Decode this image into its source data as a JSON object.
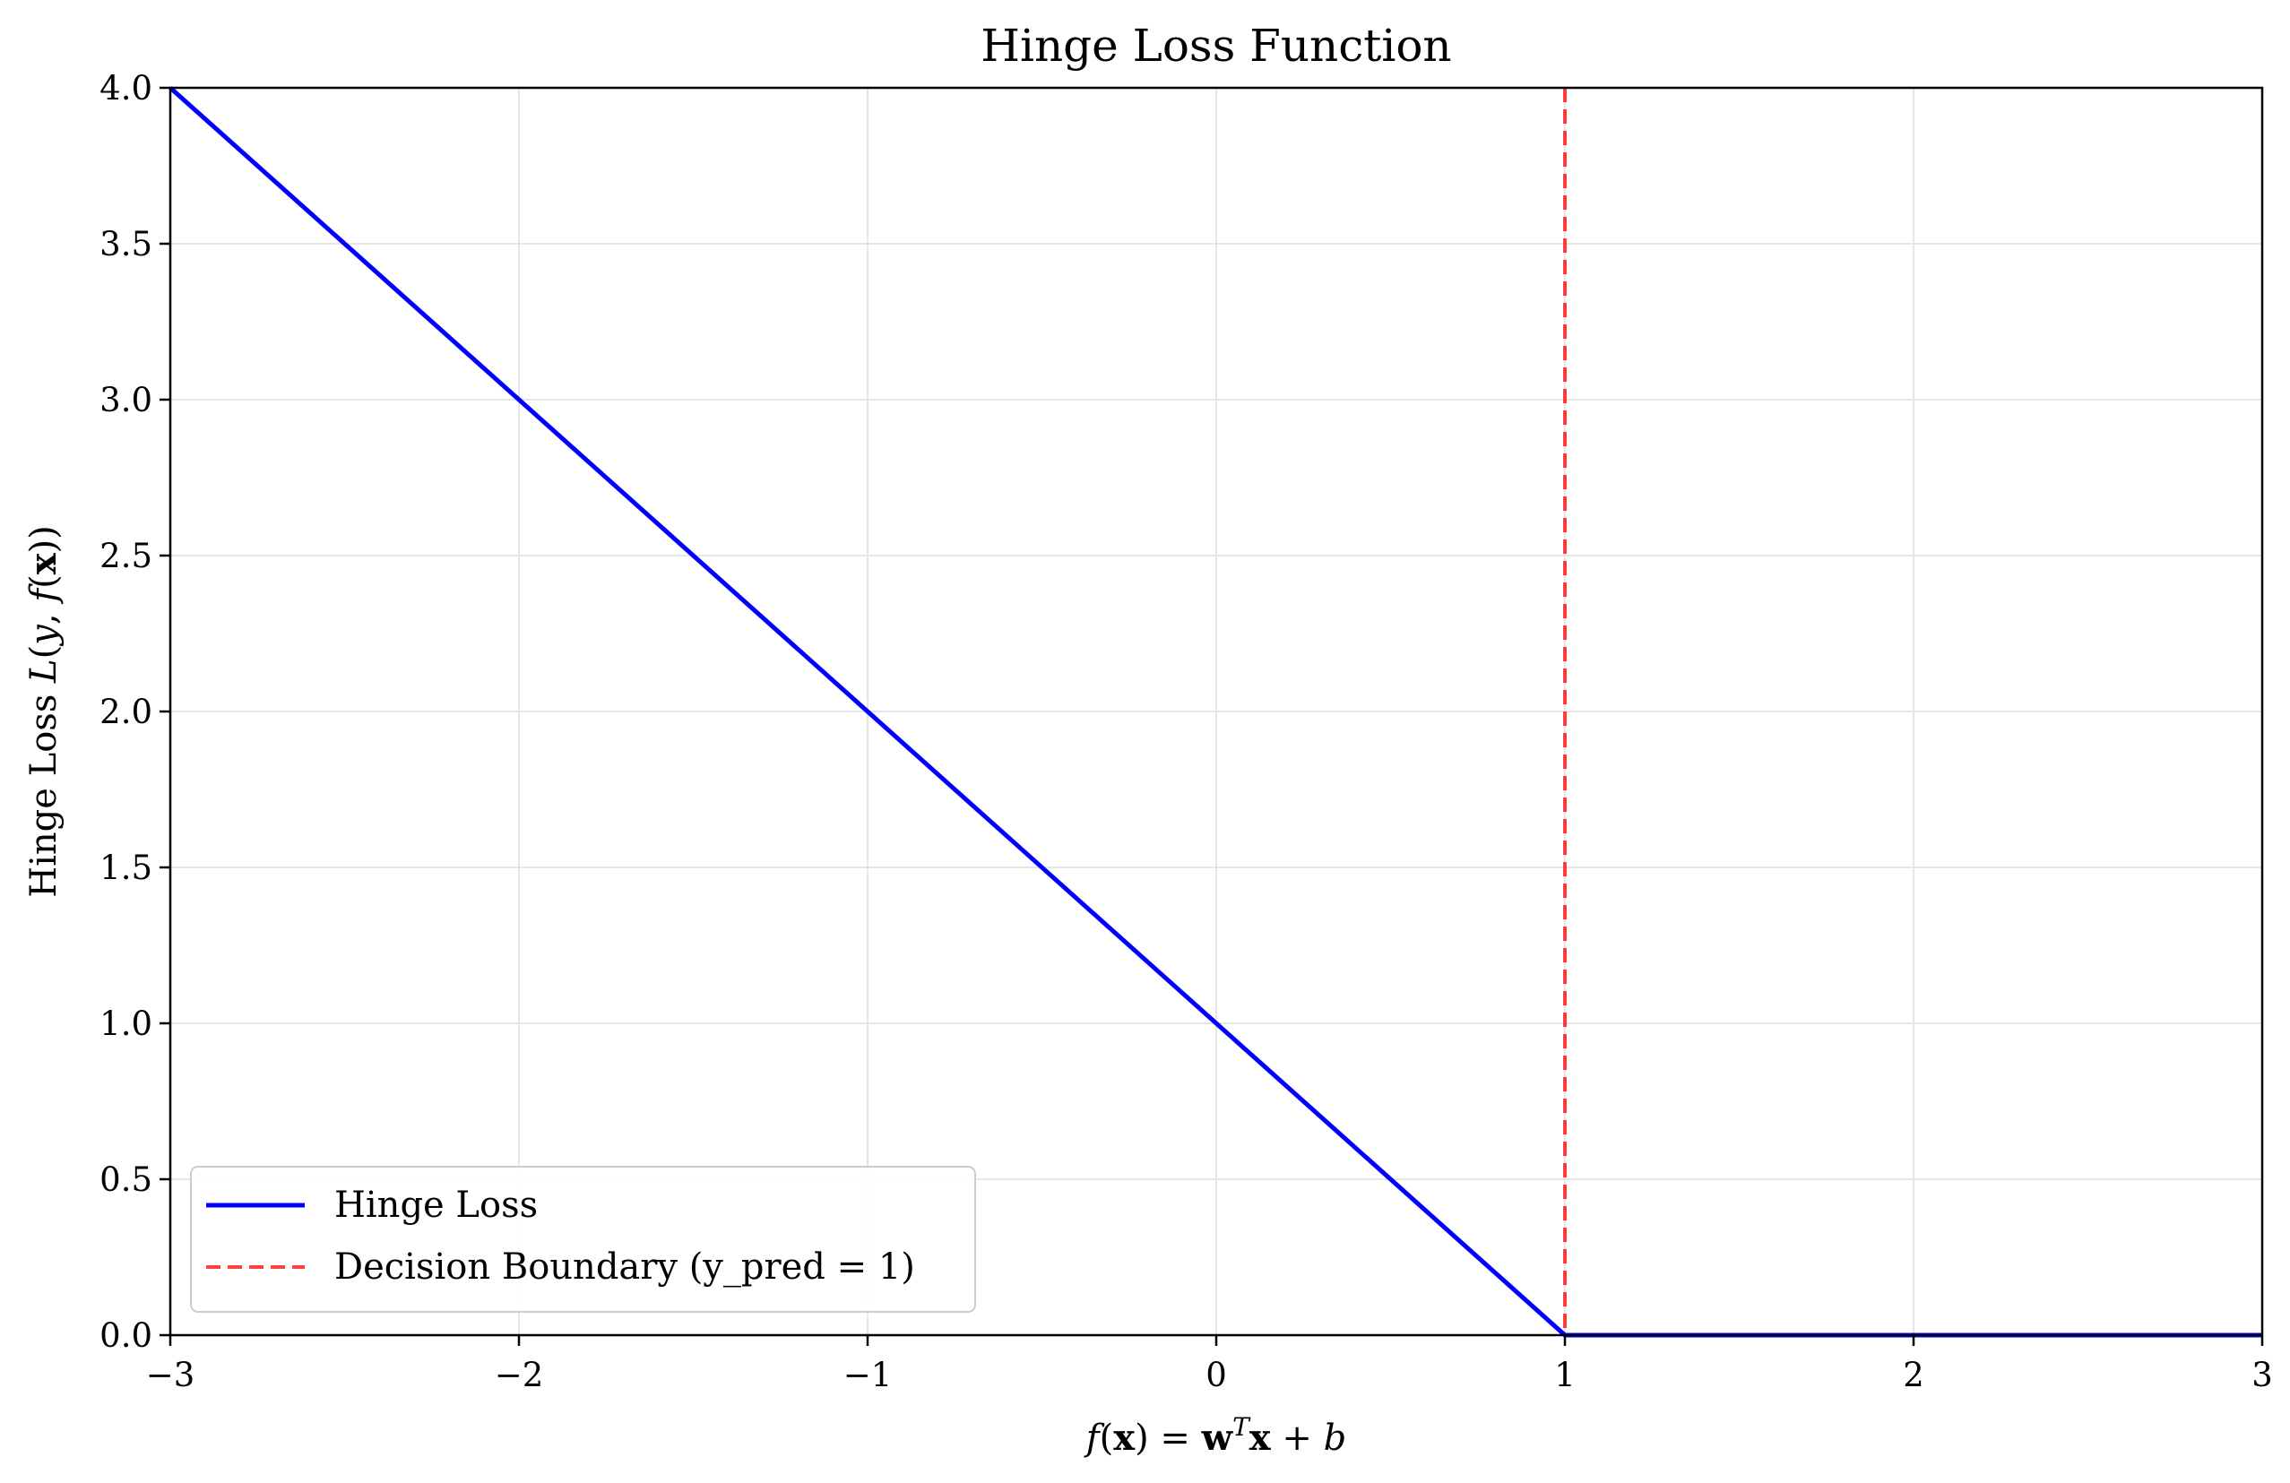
{
  "chart_data": {
    "type": "line",
    "title": "Hinge Loss Function",
    "xlabel": {
      "parts": [
        {
          "text": "f",
          "style": "italic"
        },
        {
          "text": "(",
          "style": "normal"
        },
        {
          "text": "x",
          "style": "bold"
        },
        {
          "text": ") = ",
          "style": "normal"
        },
        {
          "text": "w",
          "style": "bold"
        },
        {
          "text": "T",
          "style": "sup"
        },
        {
          "text": "x",
          "style": "bold"
        },
        {
          "text": " + ",
          "style": "normal"
        },
        {
          "text": "b",
          "style": "italic"
        }
      ]
    },
    "ylabel": {
      "parts": [
        {
          "text": "Hinge Loss ",
          "style": "normal"
        },
        {
          "text": "L",
          "style": "italic"
        },
        {
          "text": "(",
          "style": "normal"
        },
        {
          "text": "y",
          "style": "italic"
        },
        {
          "text": ", ",
          "style": "normal"
        },
        {
          "text": "f",
          "style": "italic"
        },
        {
          "text": "(",
          "style": "normal"
        },
        {
          "text": "x",
          "style": "bold"
        },
        {
          "text": "))",
          "style": "normal"
        }
      ]
    },
    "xlim": [
      -3,
      3
    ],
    "ylim": [
      0,
      4
    ],
    "x_ticks": [
      -3,
      -2,
      -1,
      0,
      1,
      2,
      3
    ],
    "x_tick_labels": [
      "−3",
      "−2",
      "−1",
      "0",
      "1",
      "2",
      "3"
    ],
    "y_ticks": [
      0,
      0.5,
      1,
      1.5,
      2,
      2.5,
      3,
      3.5,
      4
    ],
    "y_tick_labels": [
      "0.0",
      "0.5",
      "1.0",
      "1.5",
      "2.0",
      "2.5",
      "3.0",
      "3.5",
      "4.0"
    ],
    "grid": true,
    "legend_position": "lower-left",
    "series": [
      {
        "name": "Hinge Loss",
        "color": "#0000ff",
        "style": "solid",
        "x": [
          -3,
          1,
          3
        ],
        "y": [
          4,
          0,
          0
        ]
      }
    ],
    "vlines": [
      {
        "name": "Decision Boundary (y_pred = 1)",
        "x": 1,
        "color": "#ff0000",
        "style": "dashed"
      }
    ]
  }
}
